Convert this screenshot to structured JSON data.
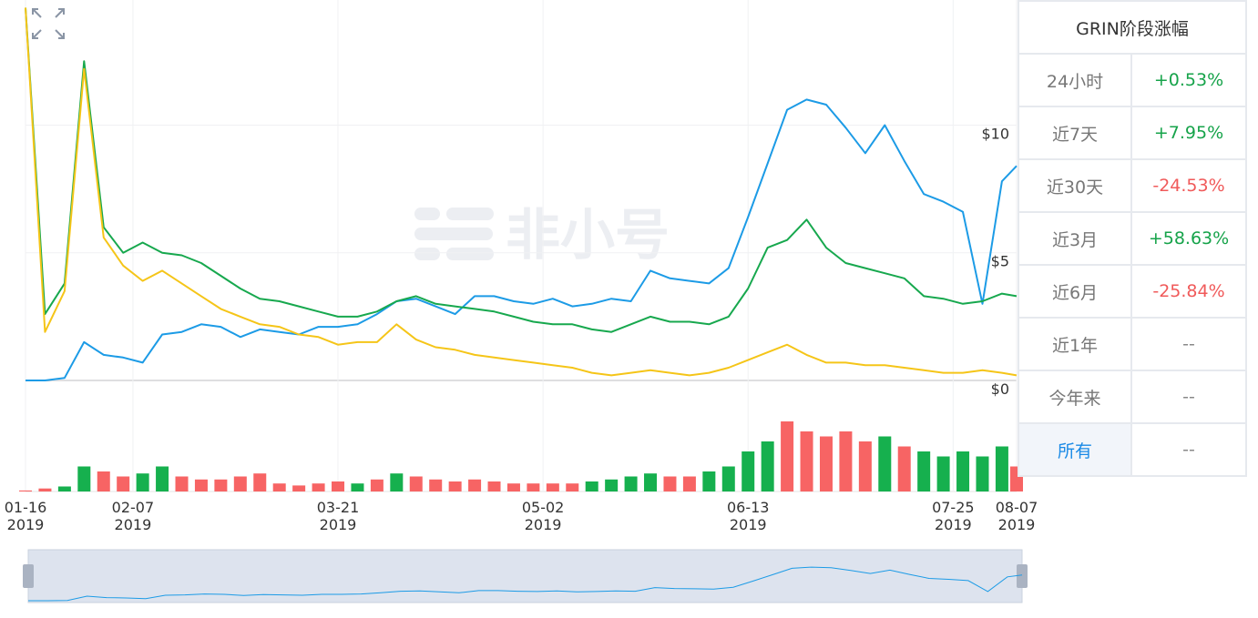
{
  "chart_data": {
    "type": "line",
    "watermark": "非小号",
    "x": [
      "2019-01-16",
      "2019-01-20",
      "2019-01-24",
      "2019-01-28",
      "2019-02-01",
      "2019-02-05",
      "2019-02-09",
      "2019-02-13",
      "2019-02-17",
      "2019-02-21",
      "2019-02-25",
      "2019-03-01",
      "2019-03-05",
      "2019-03-09",
      "2019-03-13",
      "2019-03-17",
      "2019-03-21",
      "2019-03-25",
      "2019-03-29",
      "2019-04-02",
      "2019-04-06",
      "2019-04-10",
      "2019-04-14",
      "2019-04-18",
      "2019-04-22",
      "2019-04-26",
      "2019-04-30",
      "2019-05-04",
      "2019-05-08",
      "2019-05-12",
      "2019-05-16",
      "2019-05-20",
      "2019-05-24",
      "2019-05-28",
      "2019-06-01",
      "2019-06-05",
      "2019-06-09",
      "2019-06-13",
      "2019-06-17",
      "2019-06-21",
      "2019-06-25",
      "2019-06-29",
      "2019-07-03",
      "2019-07-07",
      "2019-07-11",
      "2019-07-15",
      "2019-07-19",
      "2019-07-23",
      "2019-07-27",
      "2019-07-31",
      "2019-08-04",
      "2019-08-07"
    ],
    "xlim": [
      "2019-01-16",
      "2019-08-07"
    ],
    "xticks": [
      {
        "value": "2019-01-16",
        "label": "01-16\n2019"
      },
      {
        "value": "2019-02-07",
        "label": "02-07\n2019"
      },
      {
        "value": "2019-03-21",
        "label": "03-21\n2019"
      },
      {
        "value": "2019-05-02",
        "label": "05-02\n2019"
      },
      {
        "value": "2019-06-13",
        "label": "06-13\n2019"
      },
      {
        "value": "2019-07-25",
        "label": "07-25\n2019"
      },
      {
        "value": "2019-08-07",
        "label": "08-07\n2019"
      }
    ],
    "ylim": [
      0,
      14.9
    ],
    "yticks": [
      {
        "value": 0,
        "label": "$0"
      },
      {
        "value": 5,
        "label": "$5"
      },
      {
        "value": 10,
        "label": "$10"
      }
    ],
    "grid": true,
    "series": [
      {
        "color": "#1c9be6",
        "values": [
          0,
          0,
          0.1,
          1.5,
          1.0,
          0.9,
          0.7,
          1.8,
          1.9,
          2.2,
          2.1,
          1.7,
          2.0,
          1.9,
          1.8,
          2.1,
          2.1,
          2.2,
          2.6,
          3.1,
          3.2,
          2.9,
          2.6,
          3.3,
          3.3,
          3.1,
          3.0,
          3.2,
          2.9,
          3.0,
          3.2,
          3.1,
          4.3,
          4.0,
          3.9,
          3.8,
          4.4,
          6.4,
          8.5,
          10.6,
          11.0,
          10.8,
          9.9,
          8.9,
          10.0,
          8.6,
          7.3,
          7.0,
          6.6,
          3.0,
          7.8,
          8.4
        ]
      },
      {
        "color": "#17a84e",
        "values": [
          14.6,
          2.6,
          3.8,
          12.5,
          6.0,
          5.0,
          5.4,
          5.0,
          4.9,
          4.6,
          4.1,
          3.6,
          3.2,
          3.1,
          2.9,
          2.7,
          2.5,
          2.5,
          2.7,
          3.1,
          3.3,
          3.0,
          2.9,
          2.8,
          2.7,
          2.5,
          2.3,
          2.2,
          2.2,
          2.0,
          1.9,
          2.2,
          2.5,
          2.3,
          2.3,
          2.2,
          2.5,
          3.6,
          5.2,
          5.5,
          6.3,
          5.2,
          4.6,
          4.4,
          4.2,
          4.0,
          3.3,
          3.2,
          3.0,
          3.1,
          3.4,
          3.3
        ]
      },
      {
        "color": "#f5c518",
        "values": [
          14.6,
          1.9,
          3.5,
          12.2,
          5.6,
          4.5,
          3.9,
          4.3,
          3.8,
          3.3,
          2.8,
          2.5,
          2.2,
          2.1,
          1.8,
          1.7,
          1.4,
          1.5,
          1.5,
          2.2,
          1.6,
          1.3,
          1.2,
          1.0,
          0.9,
          0.8,
          0.7,
          0.6,
          0.5,
          0.3,
          0.2,
          0.3,
          0.4,
          0.3,
          0.2,
          0.3,
          0.5,
          0.8,
          1.1,
          1.4,
          1.0,
          0.7,
          0.7,
          0.6,
          0.6,
          0.5,
          0.4,
          0.3,
          0.3,
          0.4,
          0.3,
          0.2
        ]
      }
    ],
    "volume": {
      "type": "bar",
      "ylim": [
        0,
        100
      ],
      "up_color": "#16b04e",
      "down_color": "#f76464",
      "values": [
        1,
        3,
        5,
        25,
        20,
        15,
        18,
        25,
        15,
        12,
        12,
        15,
        18,
        8,
        6,
        8,
        10,
        8,
        12,
        18,
        15,
        12,
        10,
        12,
        10,
        8,
        8,
        8,
        8,
        10,
        12,
        15,
        18,
        15,
        15,
        20,
        25,
        40,
        50,
        70,
        60,
        55,
        60,
        50,
        55,
        45,
        40,
        35,
        40,
        35,
        45,
        25
      ],
      "up": [
        false,
        false,
        true,
        true,
        false,
        false,
        true,
        true,
        false,
        false,
        false,
        false,
        false,
        false,
        false,
        false,
        false,
        true,
        false,
        true,
        false,
        false,
        false,
        false,
        false,
        false,
        false,
        false,
        false,
        true,
        true,
        true,
        true,
        false,
        false,
        true,
        true,
        true,
        true,
        false,
        false,
        false,
        false,
        false,
        true,
        false,
        true,
        true,
        true,
        true,
        true,
        false
      ]
    }
  },
  "table": {
    "title": "GRIN阶段涨幅",
    "rows": [
      {
        "period": "24小时",
        "change": "+0.53%",
        "color": "#16a34a"
      },
      {
        "period": "近7天",
        "change": "+7.95%",
        "color": "#16a34a"
      },
      {
        "period": "近30天",
        "change": "-24.53%",
        "color": "#f05a5a"
      },
      {
        "period": "近3月",
        "change": "+58.63%",
        "color": "#16a34a"
      },
      {
        "period": "近6月",
        "change": "-25.84%",
        "color": "#f05a5a"
      },
      {
        "period": "近1年",
        "change": "--",
        "color": "#888888"
      },
      {
        "period": "今年来",
        "change": "--",
        "color": "#888888"
      },
      {
        "period": "所有",
        "change": "--",
        "color": "#888888",
        "active": true
      }
    ]
  }
}
